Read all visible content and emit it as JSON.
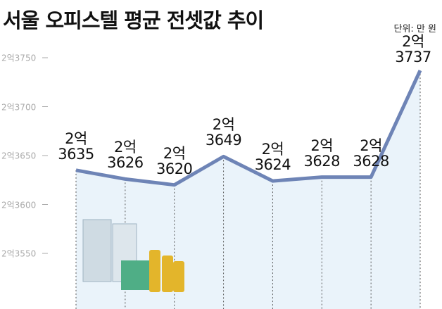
{
  "chart_data": {
    "type": "line",
    "title": "서울 오피스텔 평균 전셋값 추이",
    "subtitle": "단위: 만 원",
    "values": [
      23635,
      23626,
      23620,
      23649,
      23624,
      23628,
      23628,
      23737
    ],
    "value_labels": [
      "2억\n3635",
      "2억\n3626",
      "2억\n3620",
      "2억\n3649",
      "2억\n3624",
      "2억\n3628",
      "2억\n3628",
      "2억3737"
    ],
    "color": "#6e84b6",
    "ylim": [
      23500,
      23770
    ],
    "yticks": [
      {
        "value": 23550,
        "label": "2억3550"
      },
      {
        "value": 23600,
        "label": "2억3600"
      },
      {
        "value": 23650,
        "label": "2억3650"
      },
      {
        "value": 23700,
        "label": "2억3700"
      },
      {
        "value": 23750,
        "label": "2억3750"
      }
    ]
  }
}
